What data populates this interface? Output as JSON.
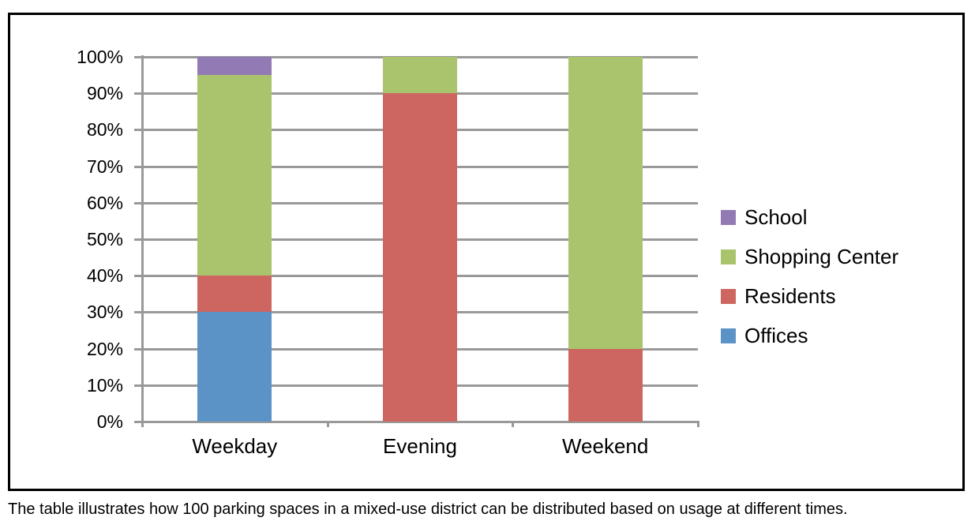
{
  "chart_data": {
    "type": "bar",
    "stacked": true,
    "title": "",
    "xlabel": "",
    "ylabel": "",
    "ylim": [
      0,
      100
    ],
    "yticks": [
      "0%",
      "10%",
      "20%",
      "30%",
      "40%",
      "50%",
      "60%",
      "70%",
      "80%",
      "90%",
      "100%"
    ],
    "categories": [
      "Weekday",
      "Evening",
      "Weekend"
    ],
    "series": [
      {
        "name": "Offices",
        "color": "#5b93c7",
        "values": [
          30,
          0,
          0
        ]
      },
      {
        "name": "Residents",
        "color": "#cd6660",
        "values": [
          10,
          90,
          20
        ]
      },
      {
        "name": "Shopping Center",
        "color": "#aac46e",
        "values": [
          55,
          10,
          80
        ]
      },
      {
        "name": "School",
        "color": "#927bb4",
        "values": [
          5,
          0,
          0
        ]
      }
    ],
    "legend_position": "right",
    "legend_order": [
      "School",
      "Shopping Center",
      "Residents",
      "Offices"
    ],
    "grid": true
  },
  "caption": "The table illustrates how 100 parking spaces in a mixed-use district can be distributed based on usage at different times."
}
